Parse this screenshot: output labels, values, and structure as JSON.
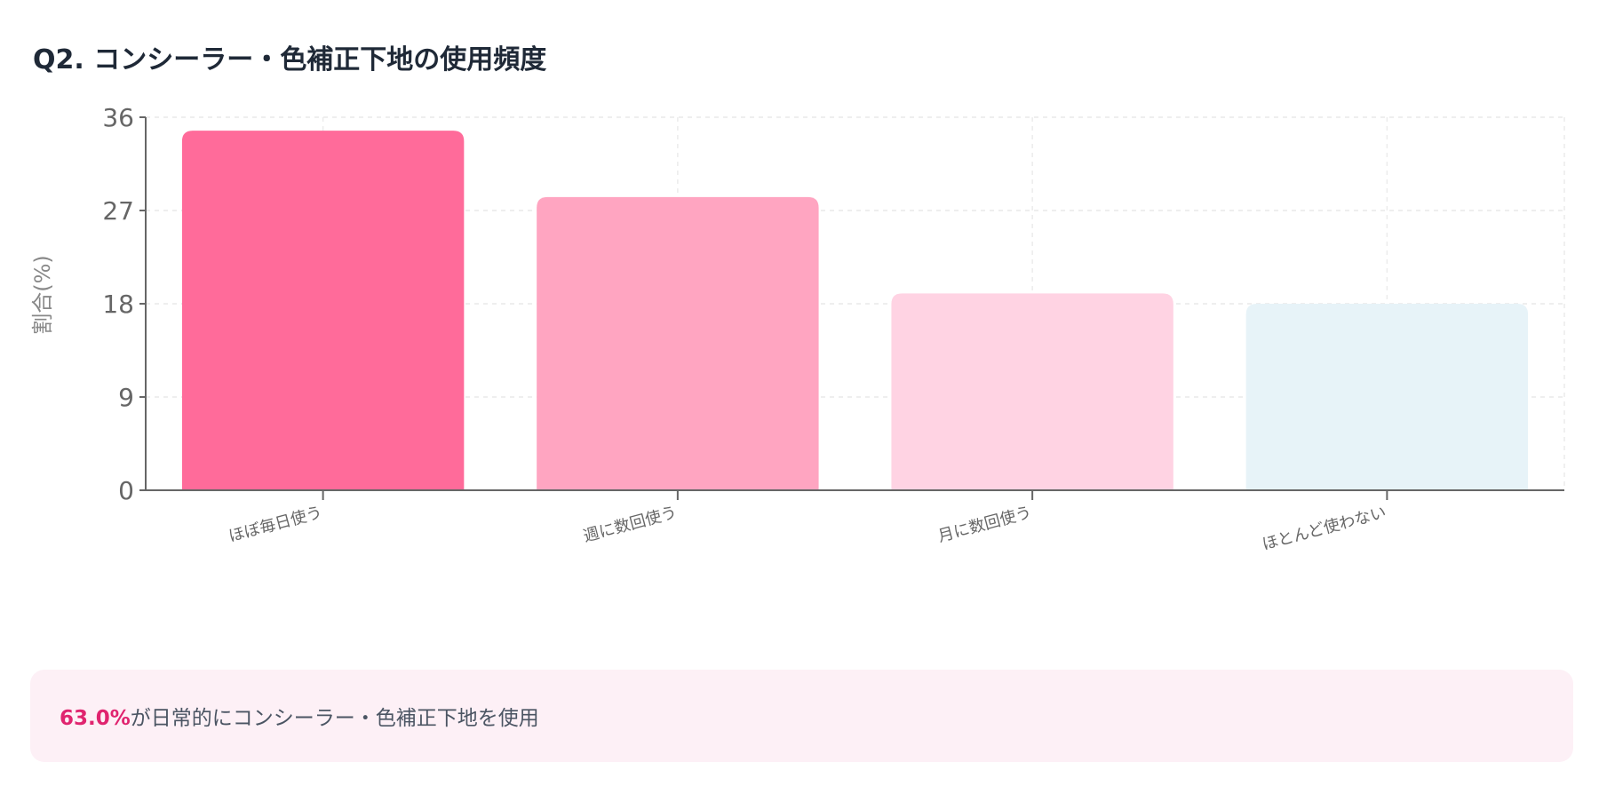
{
  "title": "Q2. コンシーラー・色補正下地の使用頻度",
  "chart_data": {
    "type": "bar",
    "title": "Q2. コンシーラー・色補正下地の使用頻度",
    "categories": [
      "ほぼ毎日使う",
      "週に数回使う",
      "月に数回使う",
      "ほとんど使わない"
    ],
    "values": [
      34.7,
      28.3,
      19.0,
      18.0
    ],
    "colors": [
      "#ff6b9a",
      "#ffa5c1",
      "#ffd3e3",
      "#e7f3f8"
    ],
    "xlabel": "",
    "ylabel": "割合(%)",
    "ylim": [
      0,
      36
    ],
    "yticks": [
      0,
      9,
      18,
      27,
      36
    ],
    "grid": true,
    "legend": "none"
  },
  "summary": {
    "highlight": "63.0%",
    "text": "が日常的にコンシーラー・色補正下地を使用",
    "highlight_color": "#e0246f"
  }
}
